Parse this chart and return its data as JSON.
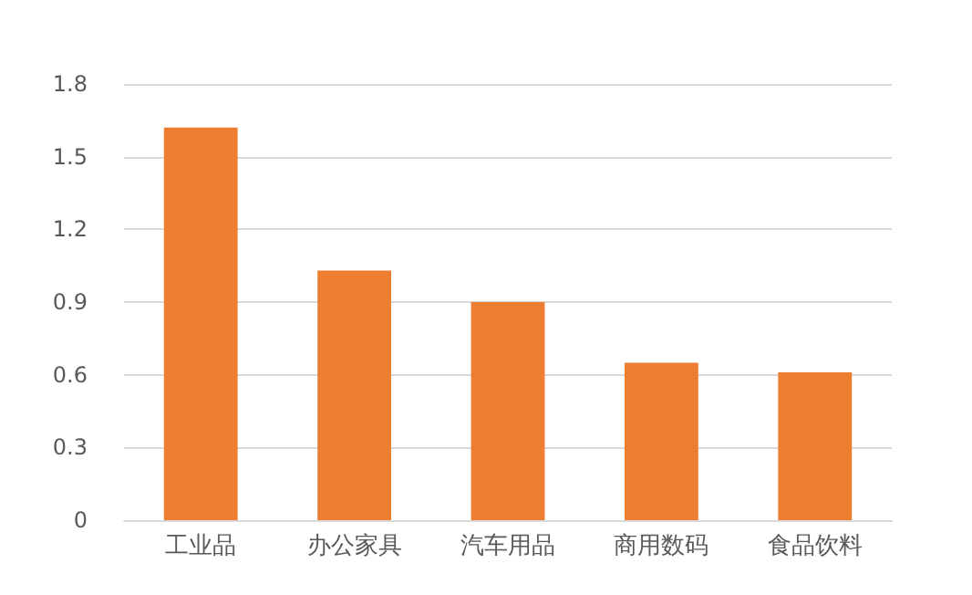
{
  "chart_data": {
    "type": "bar",
    "categories": [
      "工业品",
      "办公家具",
      "汽车用品",
      "商用数码",
      "食品饮料"
    ],
    "values": [
      1.62,
      1.03,
      0.9,
      0.65,
      0.61
    ],
    "color": "#ed7d31",
    "ylim": [
      0,
      1.8
    ],
    "yticks": [
      0,
      0.3,
      0.6,
      0.9,
      1.2,
      1.5,
      1.8
    ],
    "grid": "y"
  }
}
